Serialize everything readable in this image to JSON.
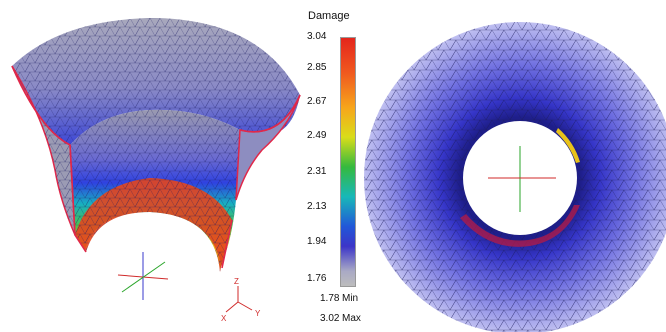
{
  "legend": {
    "title": "Damage",
    "ticks": [
      "3.04",
      "2.85",
      "2.67",
      "2.49",
      "2.31",
      "2.13",
      "1.94",
      "1.76"
    ],
    "min_value": "1.78",
    "min_label": "Min",
    "max_value": "3.02",
    "max_label": "Max"
  },
  "axes": {
    "z": "Z",
    "x": "X",
    "y": "Y"
  },
  "colors": {
    "high": "#e4251c",
    "mid": "#35b93e",
    "low": "#3c35c8",
    "base": "#bdbdbd",
    "mesh": "#2a2a7a",
    "edge": "#e0284a"
  }
}
